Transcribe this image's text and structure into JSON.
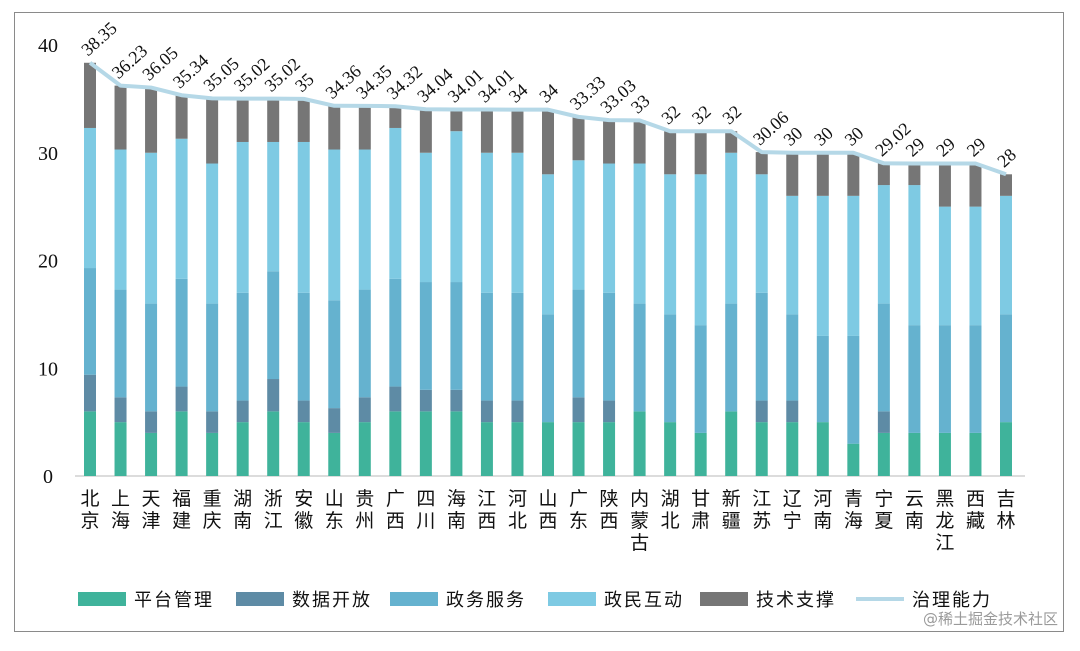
{
  "chart_data": {
    "type": "bar",
    "stacked": true,
    "title": "",
    "xlabel": "",
    "ylabel": "",
    "ylim": [
      0,
      40
    ],
    "yticks": [
      0,
      10,
      20,
      30,
      40
    ],
    "grid": false,
    "legend_position": "bottom",
    "categories": [
      "北京",
      "上海",
      "天津",
      "福建",
      "重庆",
      "湖南",
      "浙江",
      "安徽",
      "山东",
      "贵州",
      "广西",
      "四川",
      "海南",
      "江西",
      "河北",
      "山西",
      "广东",
      "陕西",
      "内蒙古",
      "湖北",
      "甘肃",
      "新疆",
      "江苏",
      "辽宁",
      "河南",
      "青海",
      "宁夏",
      "云南",
      "黑龙江",
      "西藏",
      "吉林"
    ],
    "series": [
      {
        "name": "平台管理",
        "color": "#3fb39b",
        "values": [
          6,
          5,
          4,
          6,
          4,
          5,
          6,
          5,
          4,
          5,
          6,
          6,
          6,
          5,
          5,
          5,
          5,
          5,
          6,
          5,
          4,
          6,
          5,
          5,
          5,
          3,
          4,
          4,
          4,
          4,
          5
        ]
      },
      {
        "name": "数据开放",
        "color": "#5e8ba5",
        "values": [
          3.4,
          2.3,
          2,
          2.3,
          2,
          2,
          3,
          2,
          2.3,
          2.3,
          2.3,
          2,
          2,
          2,
          2,
          0,
          2.3,
          2,
          0,
          0,
          0,
          0,
          2,
          2,
          0,
          0,
          2,
          0,
          0,
          0,
          0
        ]
      },
      {
        "name": "政务服务",
        "color": "#65b2cf",
        "values": [
          9.9,
          10,
          10,
          10,
          10,
          10,
          10,
          10,
          10,
          10,
          10,
          10,
          10,
          10,
          10,
          10,
          10,
          10,
          10,
          10,
          10,
          10,
          10,
          8,
          8,
          10,
          10,
          10,
          10,
          10,
          10
        ]
      },
      {
        "name": "政民互动",
        "color": "#7ecae3",
        "values": [
          13,
          13,
          14,
          13,
          13,
          14,
          12,
          14,
          14,
          13,
          14,
          12,
          14,
          13,
          13,
          13,
          12,
          12,
          13,
          13,
          14,
          14,
          11,
          11,
          13,
          13,
          11,
          13,
          11,
          11,
          11
        ]
      },
      {
        "name": "技术支撑",
        "color": "#767676",
        "values": [
          6.05,
          5.93,
          6.05,
          4.04,
          6.05,
          4.02,
          4.02,
          4,
          4.06,
          4.05,
          2.02,
          4.04,
          2.01,
          4.01,
          4,
          6,
          4.03,
          4.03,
          4,
          4,
          4,
          2,
          2.06,
          4,
          4,
          4,
          2.02,
          2,
          4,
          4,
          2
        ]
      }
    ],
    "line": {
      "name": "治理能力",
      "color": "#b5d8e7",
      "values": [
        38.35,
        36.23,
        36.05,
        35.34,
        35.05,
        35.02,
        35.02,
        35,
        34.36,
        34.35,
        34.32,
        34.04,
        34.01,
        34.01,
        34,
        34,
        33.33,
        33.03,
        33,
        32,
        32,
        32,
        30.06,
        30,
        30,
        30,
        29.02,
        29,
        29,
        29,
        28
      ]
    }
  },
  "watermark": "@稀土掘金技术社区"
}
